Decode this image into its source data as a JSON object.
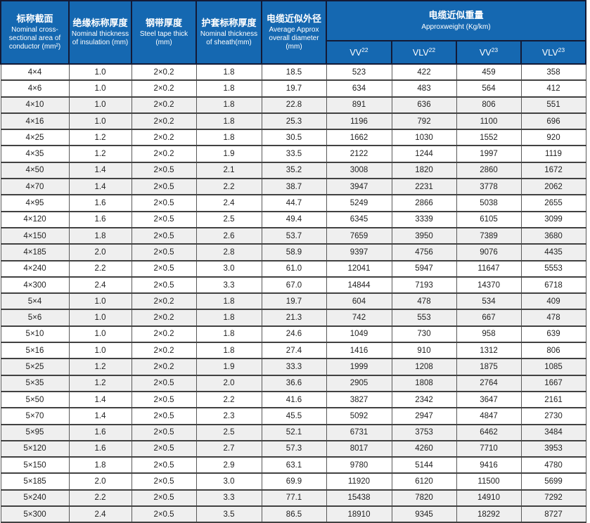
{
  "header": {
    "columns": [
      {
        "zh": "标称截面",
        "en": "Nominal cross-sectional area of conductor (mm²)"
      },
      {
        "zh": "绝缘标称厚度",
        "en": "Nominal thickness of insulation (mm)"
      },
      {
        "zh": "钢带厚度",
        "en": "Steel tape thick (mm)"
      },
      {
        "zh": "护套标称厚度",
        "en": "Nominal thickness of sheath(mm)"
      },
      {
        "zh": "电缆近似外径",
        "en": "Average Approx overall diameter (mm)"
      }
    ],
    "weight_group": {
      "zh": "电缆近似重量",
      "en": "Approxweight (Kg/km)",
      "subcols": [
        {
          "base": "VV",
          "sup": "22"
        },
        {
          "base": "VLV",
          "sup": "22"
        },
        {
          "base": "VV",
          "sup": "23"
        },
        {
          "base": "VLV",
          "sup": "23"
        }
      ]
    }
  },
  "chart_data": {
    "type": "table",
    "columns": [
      "标称截面 Nominal cross-sectional area of conductor (mm²)",
      "绝缘标称厚度 Nominal thickness of insulation (mm)",
      "钢带厚度 Steel tape thick (mm)",
      "护套标称厚度 Nominal thickness of sheath(mm)",
      "电缆近似外径 Average Approx overall diameter (mm)",
      "VV22 (Kg/km)",
      "VLV22 (Kg/km)",
      "VV23 (Kg/km)",
      "VLV23 (Kg/km)"
    ],
    "rows": [
      [
        "4×4",
        "1.0",
        "2×0.2",
        "1.8",
        "18.5",
        "523",
        "422",
        "459",
        "358"
      ],
      [
        "4×6",
        "1.0",
        "2×0.2",
        "1.8",
        "19.7",
        "634",
        "483",
        "564",
        "412"
      ],
      [
        "4×10",
        "1.0",
        "2×0.2",
        "1.8",
        "22.8",
        "891",
        "636",
        "806",
        "551"
      ],
      [
        "4×16",
        "1.0",
        "2×0.2",
        "1.8",
        "25.3",
        "1196",
        "792",
        "1100",
        "696"
      ],
      [
        "4×25",
        "1.2",
        "2×0.2",
        "1.8",
        "30.5",
        "1662",
        "1030",
        "1552",
        "920"
      ],
      [
        "4×35",
        "1.2",
        "2×0.2",
        "1.9",
        "33.5",
        "2122",
        "1244",
        "1997",
        "1119"
      ],
      [
        "4×50",
        "1.4",
        "2×0.5",
        "2.1",
        "35.2",
        "3008",
        "1820",
        "2860",
        "1672"
      ],
      [
        "4×70",
        "1.4",
        "2×0.5",
        "2.2",
        "38.7",
        "3947",
        "2231",
        "3778",
        "2062"
      ],
      [
        "4×95",
        "1.6",
        "2×0.5",
        "2.4",
        "44.7",
        "5249",
        "2866",
        "5038",
        "2655"
      ],
      [
        "4×120",
        "1.6",
        "2×0.5",
        "2.5",
        "49.4",
        "6345",
        "3339",
        "6105",
        "3099"
      ],
      [
        "4×150",
        "1.8",
        "2×0.5",
        "2.6",
        "53.7",
        "7659",
        "3950",
        "7389",
        "3680"
      ],
      [
        "4×185",
        "2.0",
        "2×0.5",
        "2.8",
        "58.9",
        "9397",
        "4756",
        "9076",
        "4435"
      ],
      [
        "4×240",
        "2.2",
        "2×0.5",
        "3.0",
        "61.0",
        "12041",
        "5947",
        "11647",
        "5553"
      ],
      [
        "4×300",
        "2.4",
        "2×0.5",
        "3.3",
        "67.0",
        "14844",
        "7193",
        "14370",
        "6718"
      ],
      [
        "5×4",
        "1.0",
        "2×0.2",
        "1.8",
        "19.7",
        "604",
        "478",
        "534",
        "409"
      ],
      [
        "5×6",
        "1.0",
        "2×0.2",
        "1.8",
        "21.3",
        "742",
        "553",
        "667",
        "478"
      ],
      [
        "5×10",
        "1.0",
        "2×0.2",
        "1.8",
        "24.6",
        "1049",
        "730",
        "958",
        "639"
      ],
      [
        "5×16",
        "1.0",
        "2×0.2",
        "1.8",
        "27.4",
        "1416",
        "910",
        "1312",
        "806"
      ],
      [
        "5×25",
        "1.2",
        "2×0.2",
        "1.9",
        "33.3",
        "1999",
        "1208",
        "1875",
        "1085"
      ],
      [
        "5×35",
        "1.2",
        "2×0.5",
        "2.0",
        "36.6",
        "2905",
        "1808",
        "2764",
        "1667"
      ],
      [
        "5×50",
        "1.4",
        "2×0.5",
        "2.2",
        "41.6",
        "3827",
        "2342",
        "3647",
        "2161"
      ],
      [
        "5×70",
        "1.4",
        "2×0.5",
        "2.3",
        "45.5",
        "5092",
        "2947",
        "4847",
        "2730"
      ],
      [
        "5×95",
        "1.6",
        "2×0.5",
        "2.5",
        "52.1",
        "6731",
        "3753",
        "6462",
        "3484"
      ],
      [
        "5×120",
        "1.6",
        "2×0.5",
        "2.7",
        "57.3",
        "8017",
        "4260",
        "7710",
        "3953"
      ],
      [
        "5×150",
        "1.8",
        "2×0.5",
        "2.9",
        "63.1",
        "9780",
        "5144",
        "9416",
        "4780"
      ],
      [
        "5×185",
        "2.0",
        "2×0.5",
        "3.0",
        "69.9",
        "11920",
        "6120",
        "11500",
        "5699"
      ],
      [
        "5×240",
        "2.2",
        "2×0.5",
        "3.3",
        "77.1",
        "15438",
        "7820",
        "14910",
        "7292"
      ],
      [
        "5×300",
        "2.4",
        "2×0.5",
        "3.5",
        "86.5",
        "18910",
        "9345",
        "18292",
        "8727"
      ]
    ]
  },
  "colors": {
    "header_blue": "#1568b1",
    "header_border": "#131a36",
    "row_alt_gray": "#efefef",
    "grid_line": "#414141",
    "body_text": "#222222",
    "header_text": "#ffffff"
  }
}
